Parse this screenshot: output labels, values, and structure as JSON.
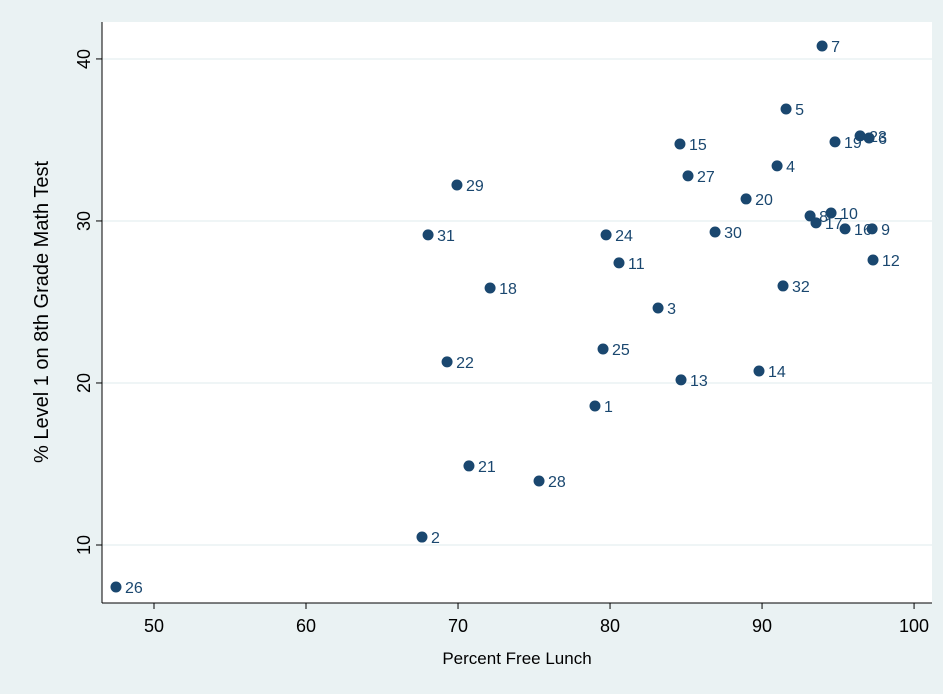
{
  "chart_data": {
    "type": "scatter",
    "x_label": "Percent Free Lunch",
    "y_label": "% Level 1 on 8th Grade Math Test",
    "color": "#1a476f",
    "grid": true,
    "xlim": [
      46.58,
      101.18
    ],
    "ylim": [
      6.42,
      42.28
    ],
    "xticks": [
      50,
      60,
      70,
      80,
      90,
      100
    ],
    "yticks": [
      10,
      20,
      30,
      40
    ],
    "labels": [
      "7",
      "5",
      "23",
      "6",
      "19",
      "15",
      "4",
      "27",
      "29",
      "20",
      "8",
      "10",
      "17",
      "16",
      "9",
      "30",
      "31",
      "24",
      "11",
      "12",
      "18",
      "32",
      "3",
      "25",
      "22",
      "14",
      "13",
      "1",
      "21",
      "28",
      "2",
      "26"
    ],
    "x": [
      93.95,
      91.58,
      96.45,
      97.04,
      94.8,
      84.6,
      90.99,
      85.13,
      69.93,
      88.95,
      93.16,
      94.54,
      93.55,
      95.46,
      97.24,
      86.91,
      68.03,
      79.74,
      80.59,
      97.3,
      72.11,
      91.38,
      83.16,
      79.54,
      69.28,
      89.8,
      84.67,
      79.01,
      70.72,
      75.33,
      67.63,
      47.5
    ],
    "values": [
      40.8,
      36.91,
      35.25,
      35.12,
      34.88,
      34.75,
      33.4,
      32.78,
      32.22,
      31.36,
      30.31,
      30.49,
      29.88,
      29.51,
      29.51,
      29.32,
      29.14,
      29.14,
      27.41,
      27.59,
      25.86,
      25.99,
      24.63,
      22.1,
      21.3,
      20.74,
      20.19,
      18.58,
      14.88,
      13.95,
      10.49,
      7.41
    ]
  }
}
